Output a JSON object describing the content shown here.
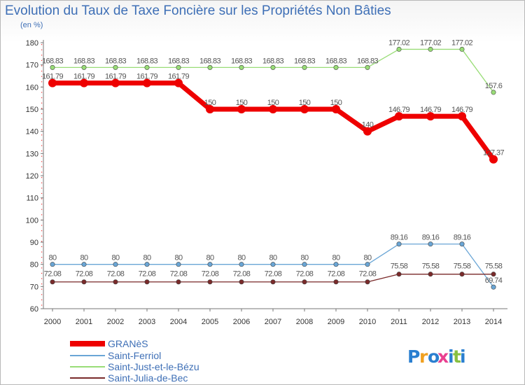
{
  "chart_data": {
    "type": "line",
    "title": "Evolution du Taux de Taxe Foncière sur les Propriétés Non Bâties",
    "subtitle": "(en %)",
    "x": [
      "2000",
      "2001",
      "2002",
      "2003",
      "2004",
      "2005",
      "2006",
      "2007",
      "2008",
      "2009",
      "2010",
      "2011",
      "2012",
      "2013",
      "2014"
    ],
    "ylim": [
      60,
      180
    ],
    "yticks": [
      60,
      70,
      80,
      90,
      100,
      110,
      120,
      130,
      140,
      150,
      160,
      170,
      180
    ],
    "grid": false,
    "legend_position": "bottom-left",
    "series": [
      {
        "name": "GRANèS",
        "color": "#ee0000",
        "values": [
          161.79,
          161.79,
          161.79,
          161.79,
          161.79,
          150,
          150,
          150,
          150,
          150,
          140,
          146.79,
          146.79,
          146.79,
          127.37
        ],
        "labels": [
          "161.79",
          "161.79",
          "161.79",
          "161.79",
          "161.79",
          "150",
          "150",
          "150",
          "150",
          "150",
          "140",
          "146.79",
          "146.79",
          "146.79",
          "127.37"
        ]
      },
      {
        "name": "Saint-Ferriol",
        "color": "#6aa6d6",
        "values": [
          80,
          80,
          80,
          80,
          80,
          80,
          80,
          80,
          80,
          80,
          80,
          89.16,
          89.16,
          89.16,
          69.74
        ],
        "labels": [
          "80",
          "80",
          "80",
          "80",
          "80",
          "80",
          "80",
          "80",
          "80",
          "80",
          "80",
          "89.16",
          "89.16",
          "89.16",
          "69.74"
        ]
      },
      {
        "name": "Saint-Just-et-le-Bézu",
        "color": "#99dd77",
        "values": [
          168.83,
          168.83,
          168.83,
          168.83,
          168.83,
          168.83,
          168.83,
          168.83,
          168.83,
          168.83,
          168.83,
          177.02,
          177.02,
          177.02,
          157.6
        ],
        "labels": [
          "168.83",
          "168.83",
          "168.83",
          "168.83",
          "168.83",
          "168.83",
          "168.83",
          "168.83",
          "168.83",
          "168.83",
          "168.83",
          "177.02",
          "177.02",
          "177.02",
          "157.6"
        ]
      },
      {
        "name": "Saint-Julia-de-Bec",
        "color": "#7a2a2a",
        "values": [
          72.08,
          72.08,
          72.08,
          72.08,
          72.08,
          72.08,
          72.08,
          72.08,
          72.08,
          72.08,
          72.08,
          75.58,
          75.58,
          75.58,
          75.58
        ],
        "labels": [
          "72.08",
          "72.08",
          "72.08",
          "72.08",
          "72.08",
          "72.08",
          "72.08",
          "72.08",
          "72.08",
          "72.08",
          "72.08",
          "75.58",
          "75.58",
          "75.58",
          "75.58"
        ]
      }
    ]
  },
  "logo": {
    "text": "Proxiti"
  }
}
